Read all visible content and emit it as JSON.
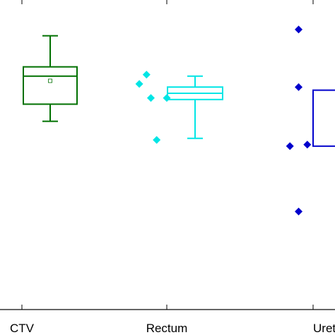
{
  "chart_data": {
    "type": "box",
    "title": "",
    "xlabel": "",
    "ylabel": "",
    "grid": false,
    "categories": [
      "CTV",
      "Rectum",
      "Urethra"
    ],
    "ylim": [
      0,
      10
    ],
    "series": [
      {
        "category": "CTV",
        "color": "#007000",
        "points": [
          {
            "x": -1.3,
            "y": 8.1
          },
          {
            "x": -0.6,
            "y": 7.8
          },
          {
            "x": -0.55,
            "y": 7.3
          }
        ],
        "box": {
          "whisker_low": 6.1,
          "q1": 6.65,
          "median": 7.55,
          "mean": 7.4,
          "q3": 7.85,
          "whisker_high": 8.85
        }
      },
      {
        "category": "Rectum",
        "color": "#00e5e5",
        "points": [
          {
            "x": -0.38,
            "y": 7.3
          },
          {
            "x": -0.28,
            "y": 7.6
          },
          {
            "x": -0.22,
            "y": 6.85
          },
          {
            "x": -0.14,
            "y": 5.5
          },
          {
            "x": 0.0,
            "y": 6.85
          }
        ],
        "box": {
          "whisker_low": 5.55,
          "q1": 6.8,
          "median": 7.0,
          "q3": 7.2,
          "whisker_high": 7.55
        }
      },
      {
        "category": "Urethra",
        "color": "#0000cc",
        "points": [
          {
            "x": -0.32,
            "y": 5.3
          },
          {
            "x": -0.2,
            "y": 9.05
          },
          {
            "x": -0.2,
            "y": 7.2
          },
          {
            "x": -0.2,
            "y": 3.2
          },
          {
            "x": -0.08,
            "y": 5.35
          }
        ],
        "box": {
          "q1": 5.3,
          "q3": 7.1
        }
      }
    ]
  }
}
